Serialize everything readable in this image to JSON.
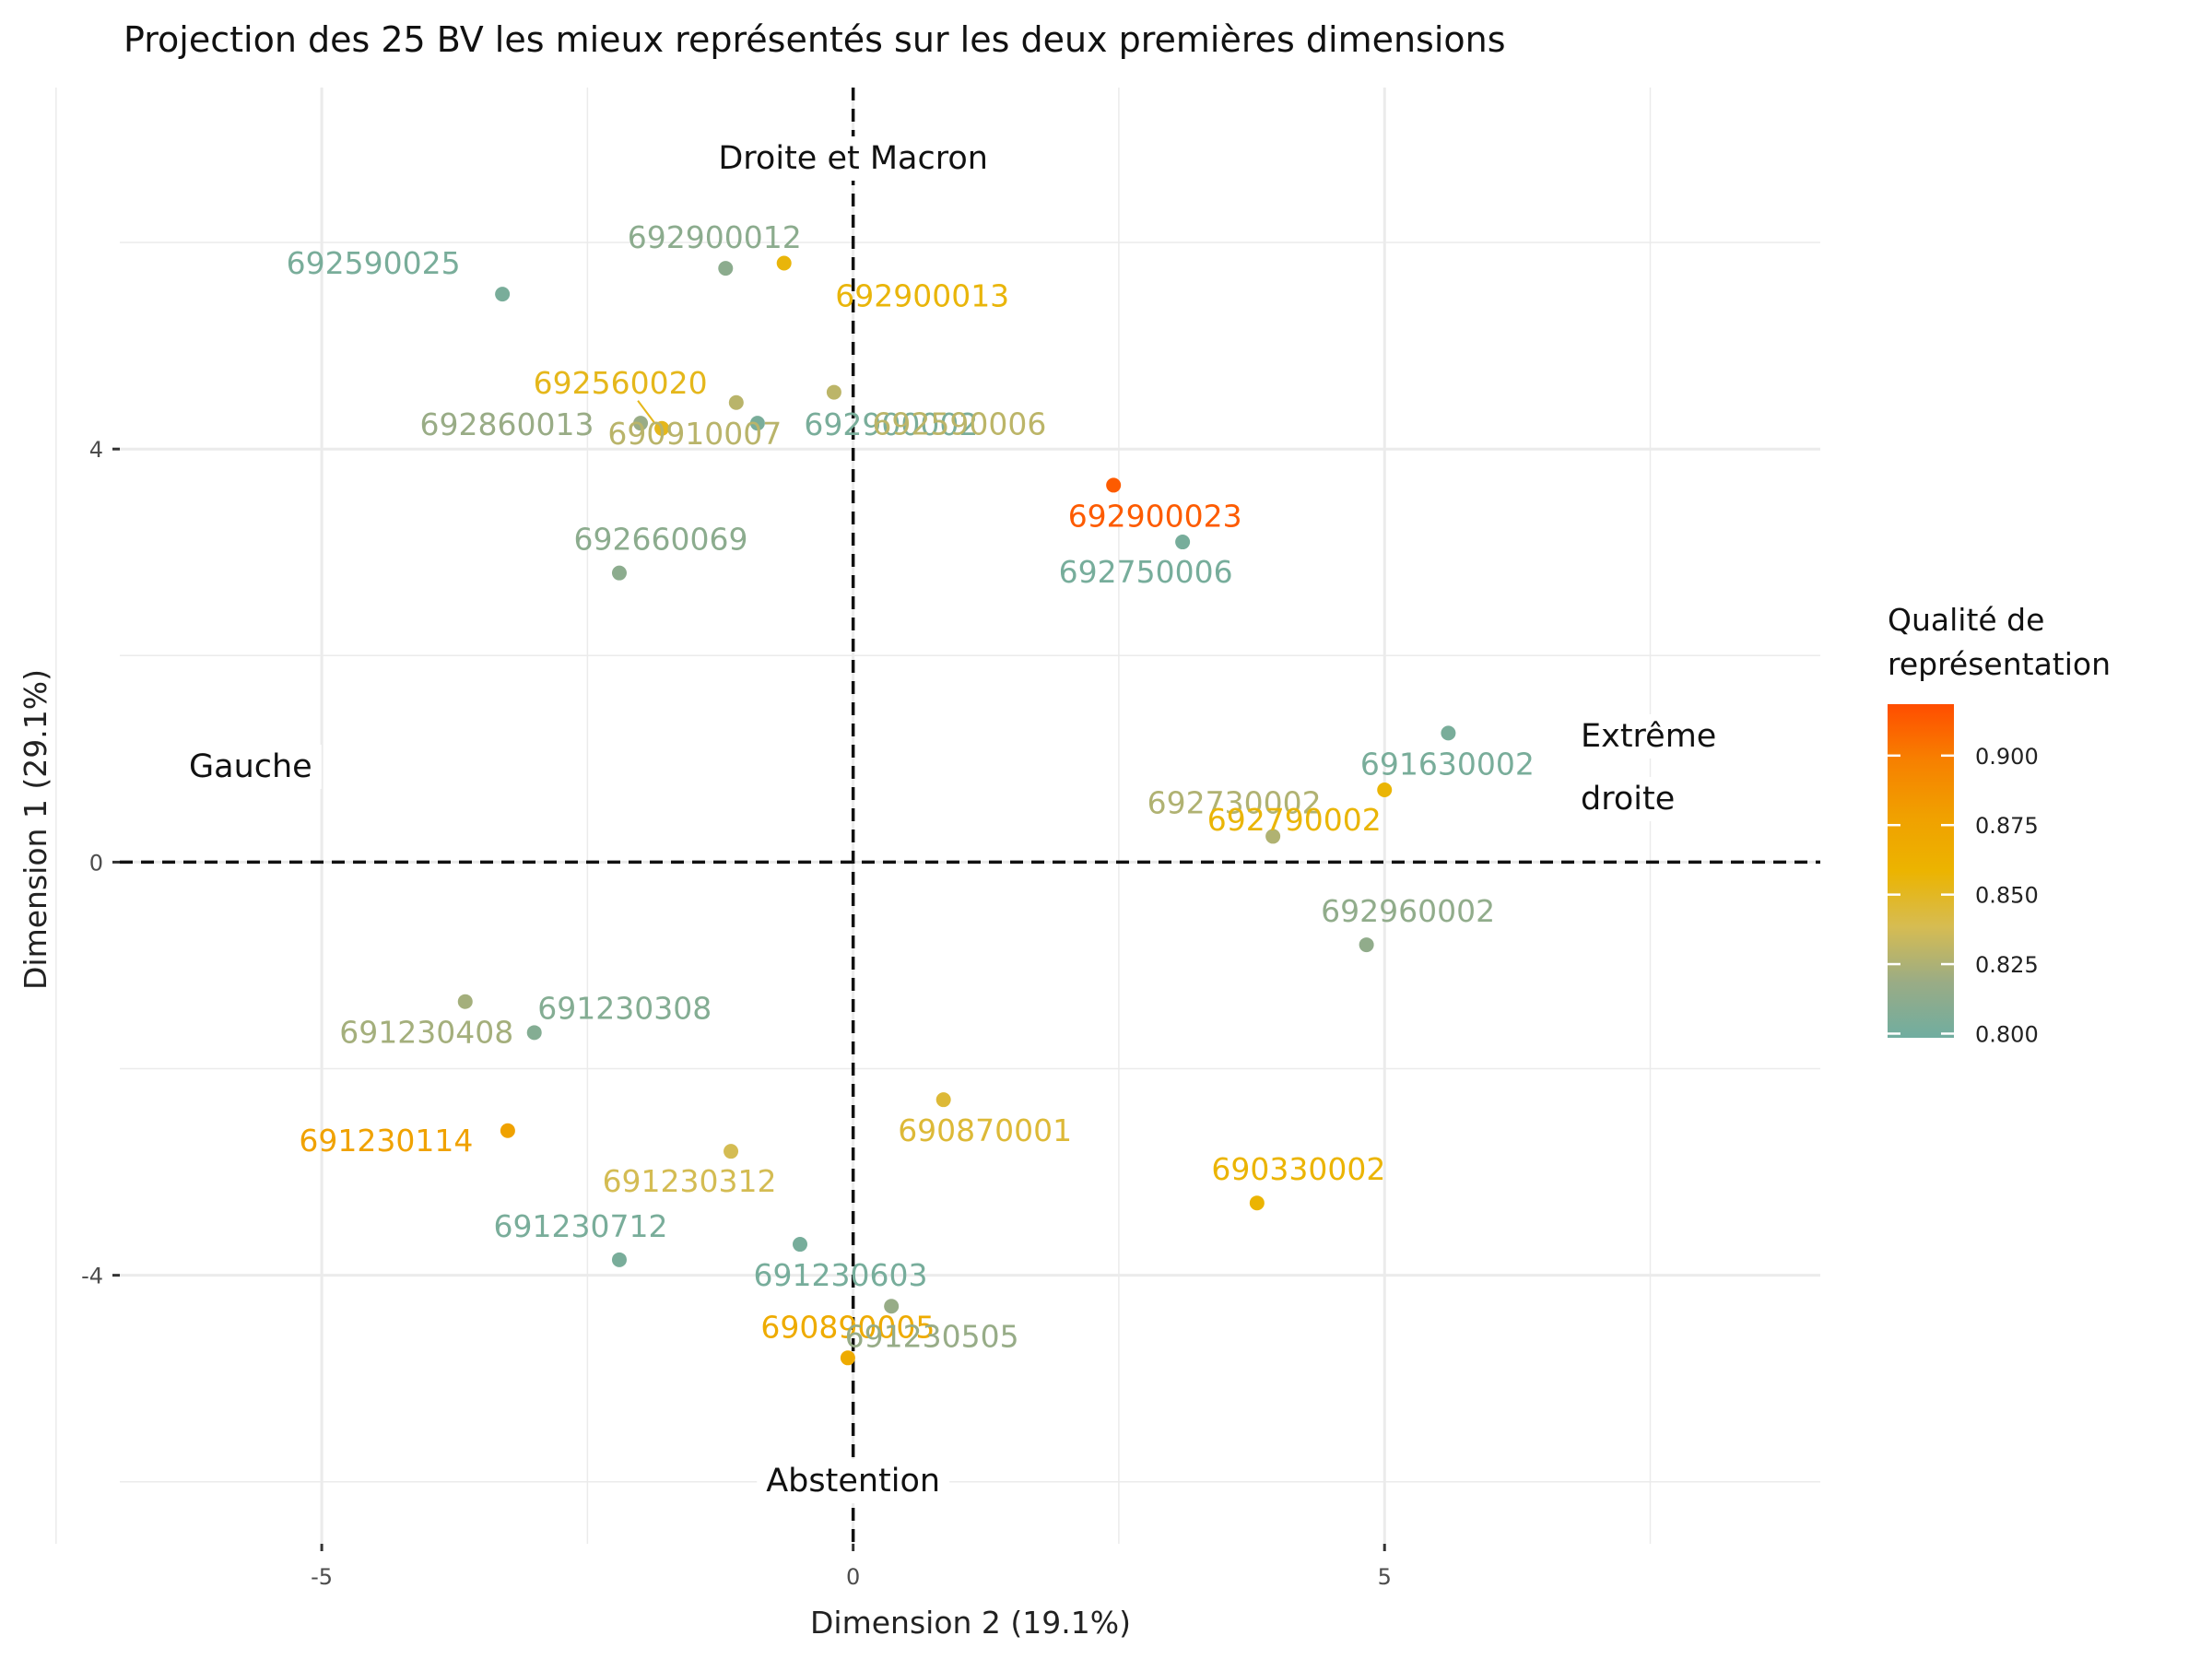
{
  "chart_data": {
    "type": "scatter",
    "title": "Projection des 25 BV les mieux représentés sur les deux premières dimensions",
    "xlabel": "Dimension 2 (19.1%)",
    "ylabel": "Dimension 1 (29.1%)",
    "xlim": [
      -6.9,
      9.1
    ],
    "ylim": [
      7.5,
      -6.6
    ],
    "y_axis_reversed": true,
    "x_ticks": [
      -5,
      0,
      5
    ],
    "y_ticks": [
      -4,
      0,
      4
    ],
    "x_tick_labels": [
      "-5",
      "0",
      "5"
    ],
    "y_tick_labels": [
      "-4",
      "0",
      "4"
    ],
    "grid": true,
    "reference_lines": {
      "x": 0,
      "y": 0,
      "style": "dashed"
    },
    "annotations": [
      {
        "text": "Droite et Macron",
        "x": 0,
        "y": -5.9
      },
      {
        "text": "Abstention",
        "x": 0,
        "y": 6.9
      },
      {
        "text": "Gauche",
        "x": -5.4,
        "y": 0
      },
      {
        "text": "Extrême",
        "x": 7.8,
        "y": -0.3
      },
      {
        "text": "droite",
        "x": 7.5,
        "y": 0.3
      }
    ],
    "legend": {
      "title": "Qualité de\nreprésentation",
      "position": "right",
      "ticks": [
        0.9,
        0.875,
        0.85,
        0.825,
        0.8
      ],
      "tick_labels": [
        "0.900",
        "0.875",
        "0.850",
        "0.825",
        "0.800"
      ],
      "range": [
        0.7985,
        0.9185
      ],
      "gradient": [
        "#70ada0",
        "#9aac85",
        "#d6bc52",
        "#ecb400",
        "#f0a000",
        "#f78000",
        "#ff4d00"
      ]
    },
    "points": [
      {
        "label": "690890005",
        "x": -0.05,
        "y": -4.8,
        "quality": 0.868
      },
      {
        "label": "691230505",
        "x": 0.36,
        "y": -4.3,
        "quality": 0.817
      },
      {
        "label": "691230712",
        "x": -2.2,
        "y": -3.85,
        "quality": 0.803
      },
      {
        "label": "691230603",
        "x": -0.5,
        "y": -3.7,
        "quality": 0.802
      },
      {
        "label": "690330002",
        "x": 3.8,
        "y": -3.3,
        "quality": 0.858
      },
      {
        "label": "691230114",
        "x": -3.25,
        "y": -2.6,
        "quality": 0.877
      },
      {
        "label": "691230312",
        "x": -1.15,
        "y": -2.8,
        "quality": 0.838
      },
      {
        "label": "690870001",
        "x": 0.85,
        "y": -2.3,
        "quality": 0.845
      },
      {
        "label": "691230308",
        "x": -3.0,
        "y": -1.65,
        "quality": 0.808
      },
      {
        "label": "691230408",
        "x": -3.65,
        "y": -1.35,
        "quality": 0.822
      },
      {
        "label": "692960002",
        "x": 4.83,
        "y": -0.8,
        "quality": 0.814
      },
      {
        "label": "692730002",
        "x": 3.95,
        "y": 0.25,
        "quality": 0.826
      },
      {
        "label": "692790002",
        "x": 5.0,
        "y": 0.7,
        "quality": 0.857
      },
      {
        "label": "691630002",
        "x": 5.6,
        "y": 1.25,
        "quality": 0.803
      },
      {
        "label": "692660069",
        "x": -2.2,
        "y": 2.8,
        "quality": 0.812
      },
      {
        "label": "692750006",
        "x": 3.1,
        "y": 3.1,
        "quality": 0.802
      },
      {
        "label": "692900023",
        "x": 2.45,
        "y": 3.65,
        "quality": 0.913
      },
      {
        "label": "692560020",
        "x": -1.8,
        "y": 4.2,
        "quality": 0.852
      },
      {
        "label": "692860013",
        "x": -2.0,
        "y": 4.25,
        "quality": 0.818
      },
      {
        "label": "692900002",
        "x": -0.9,
        "y": 4.25,
        "quality": 0.803
      },
      {
        "label": "690910007",
        "x": -1.1,
        "y": 4.45,
        "quality": 0.829
      },
      {
        "label": "692590006",
        "x": -0.18,
        "y": 4.55,
        "quality": 0.83
      },
      {
        "label": "692590025",
        "x": -3.3,
        "y": 5.5,
        "quality": 0.803
      },
      {
        "label": "692900012",
        "x": -1.2,
        "y": 5.75,
        "quality": 0.812
      },
      {
        "label": "692900013",
        "x": -0.65,
        "y": 5.8,
        "quality": 0.856
      }
    ]
  }
}
